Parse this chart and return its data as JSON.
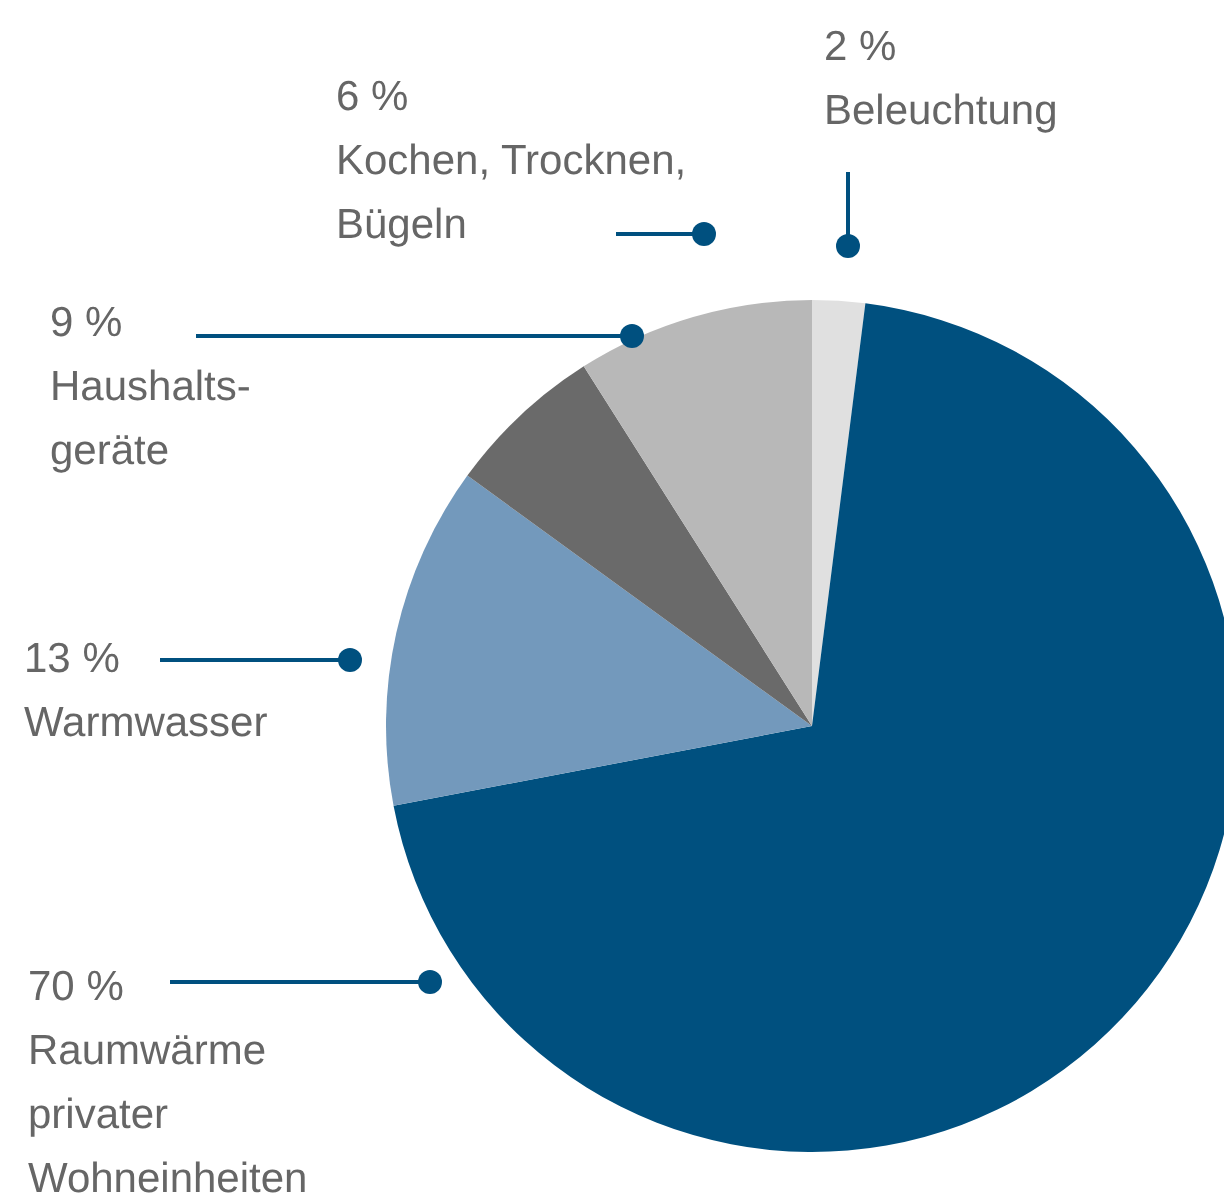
{
  "chart_data": {
    "type": "pie",
    "categories": [
      "Beleuchtung",
      "Raumwärme\nprivater\nWohneinheiten",
      "Warmwasser",
      "Kochen, Trocknen,\nBügeln",
      "Haushalts-\ngeräte"
    ],
    "values": [
      2,
      70,
      13,
      6,
      9
    ],
    "value_labels": [
      "2 %",
      "70 %",
      "13 %",
      "6 %",
      "9 %"
    ],
    "colors": [
      "#e0e0e0",
      "#00507f",
      "#7399bc",
      "#6a6a6a",
      "#b8b8b8"
    ],
    "legend": false
  }
}
